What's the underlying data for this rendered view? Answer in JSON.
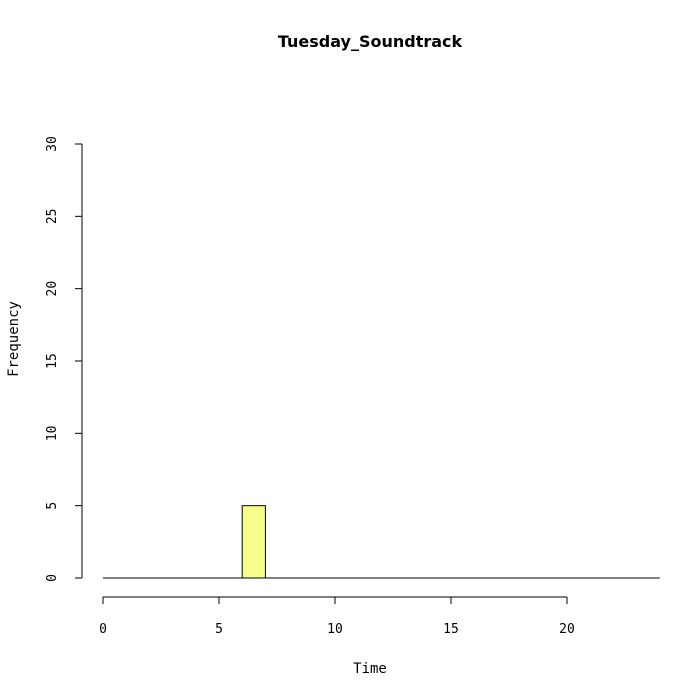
{
  "chart_data": {
    "type": "bar",
    "title": "Tuesday_Soundtrack",
    "xlabel": "Time",
    "ylabel": "Frequency",
    "xlim": [
      0,
      24
    ],
    "ylim": [
      0,
      30
    ],
    "x_ticks": [
      0,
      5,
      10,
      15,
      20
    ],
    "y_ticks": [
      0,
      5,
      10,
      15,
      20,
      25,
      30
    ],
    "bins": [
      {
        "start": 6,
        "end": 7,
        "value": 5
      }
    ],
    "bar_color": "#F5FF8A",
    "grid": false
  }
}
